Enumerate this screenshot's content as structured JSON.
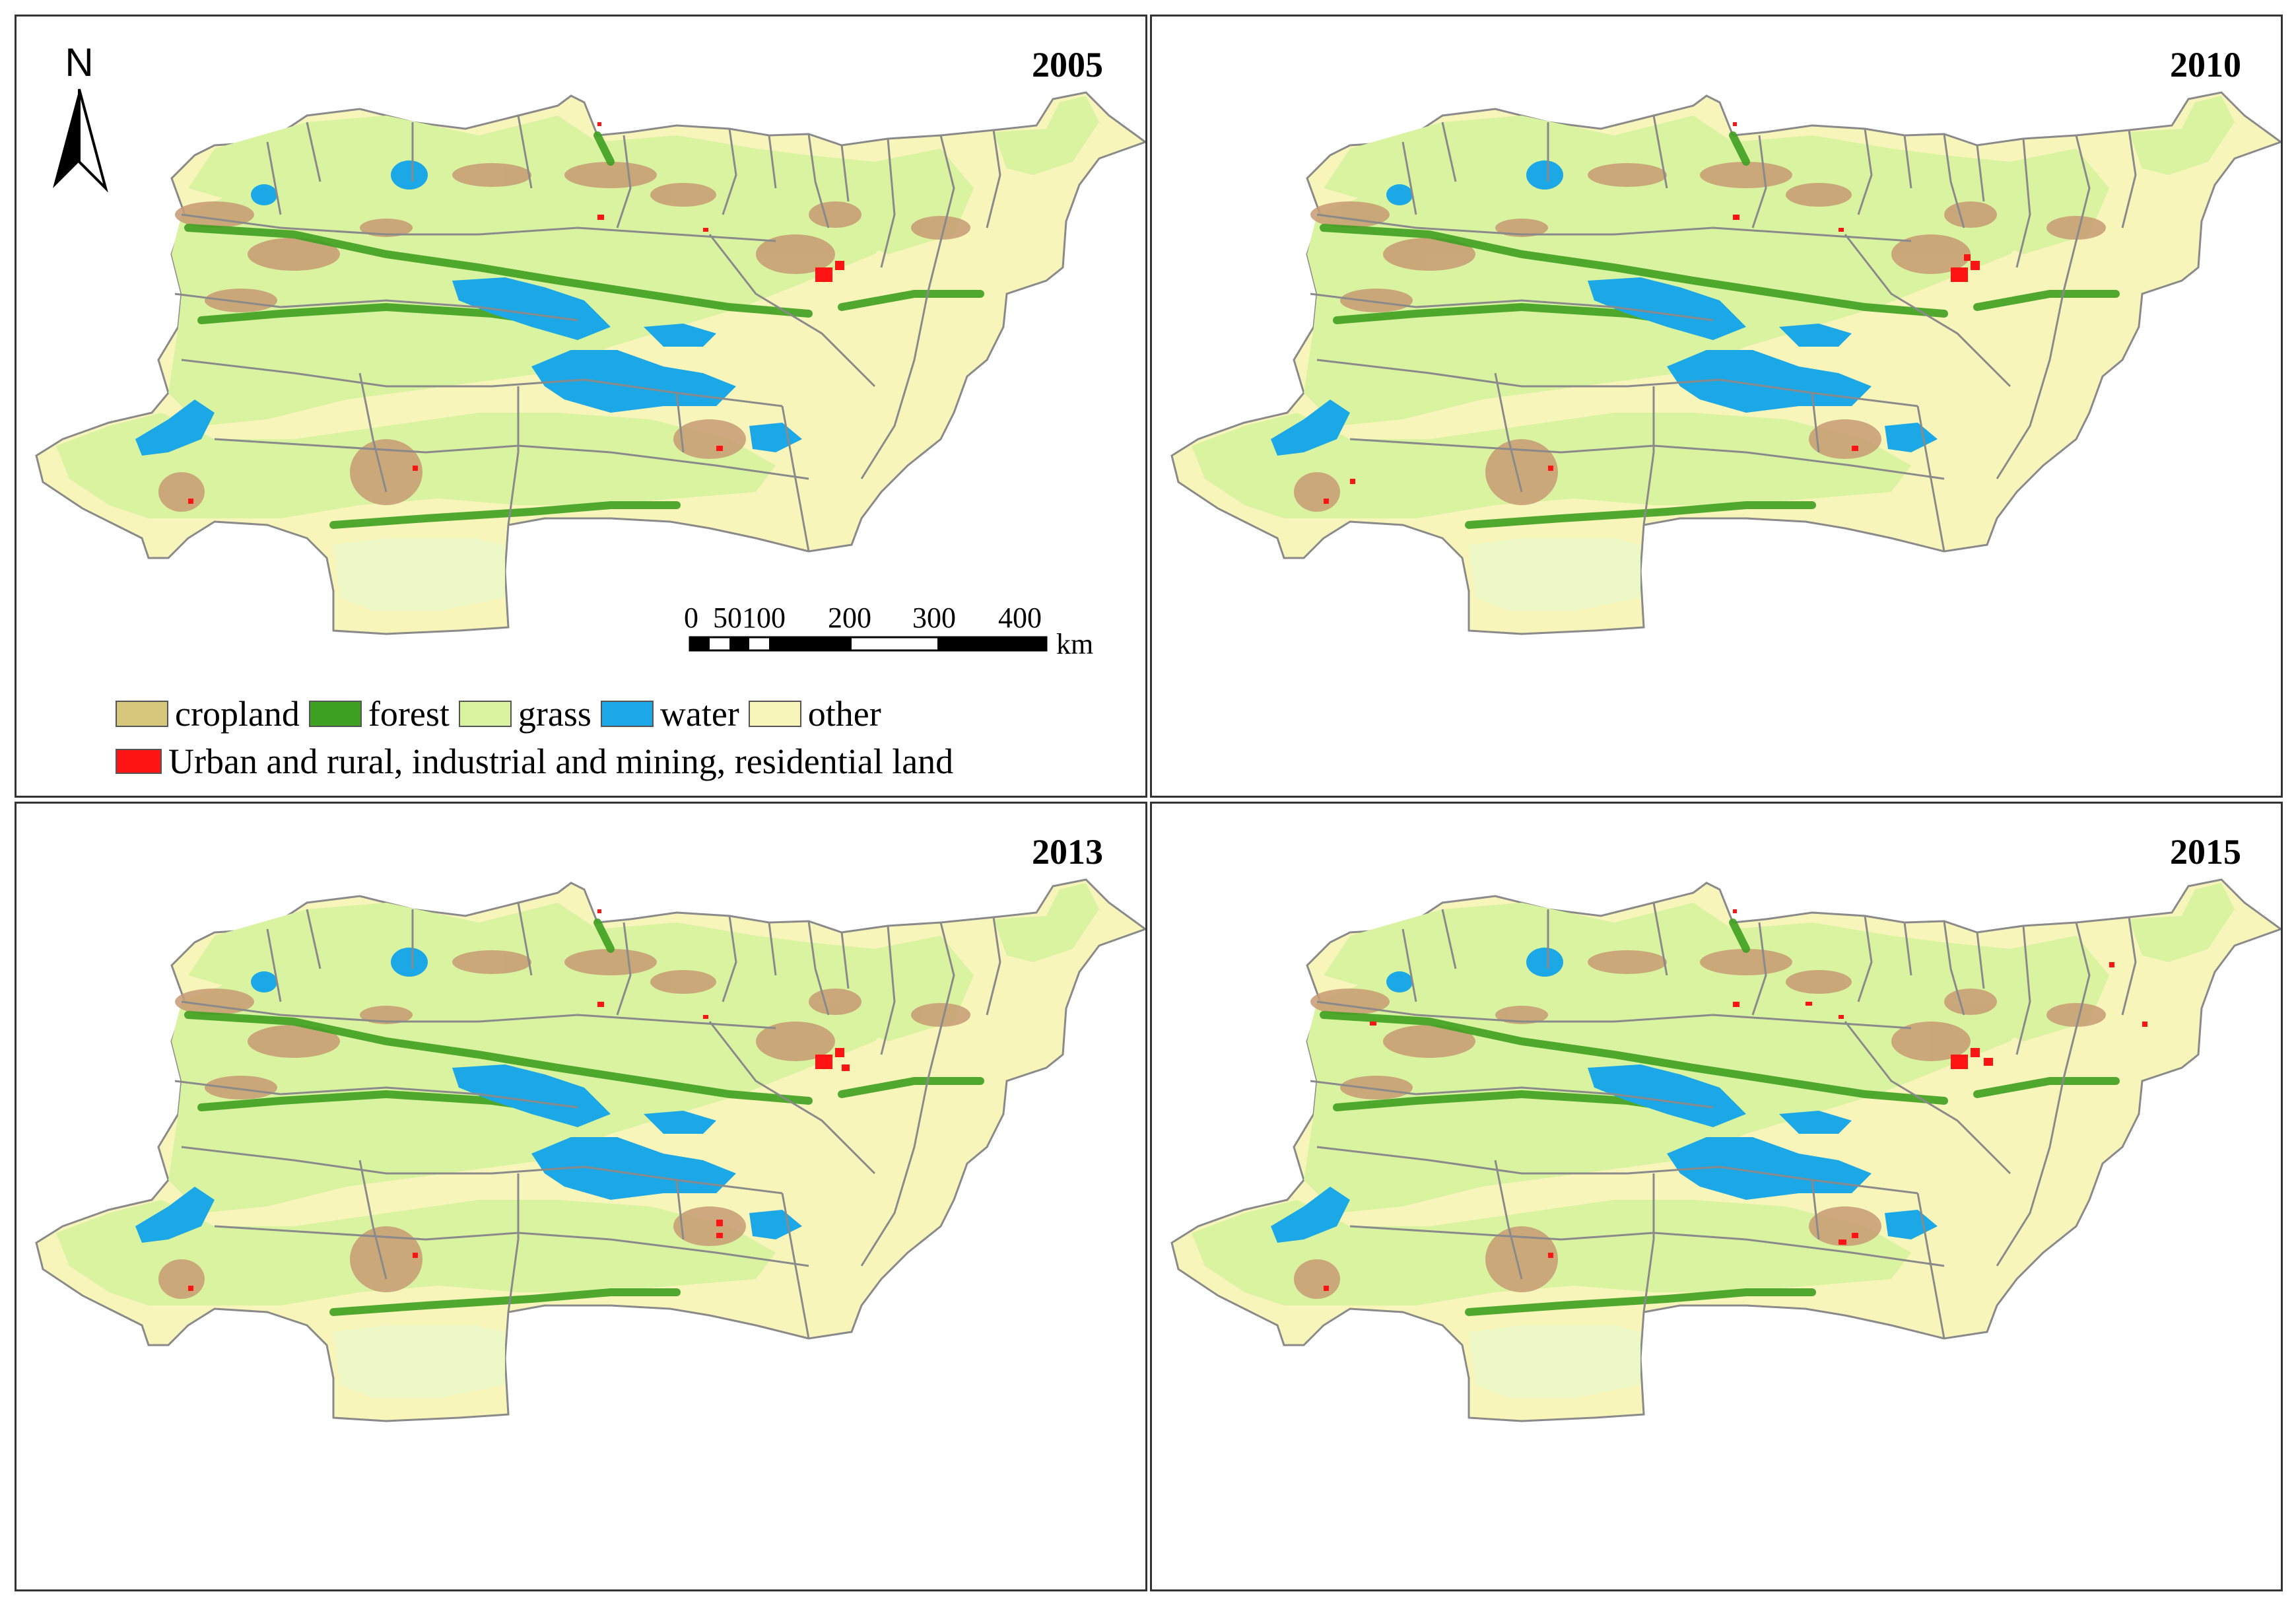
{
  "panels": [
    {
      "year": "2005"
    },
    {
      "year": "2010"
    },
    {
      "year": "2013"
    },
    {
      "year": "2015"
    }
  ],
  "north_arrow": {
    "label": "N"
  },
  "scale_bar": {
    "ticks": [
      "0",
      "50100",
      "200",
      "300",
      "400"
    ],
    "unit": "km"
  },
  "legend": {
    "items": [
      {
        "label": "cropland",
        "color": "#d6c77a"
      },
      {
        "label": "forest",
        "color": "#3ea020"
      },
      {
        "label": "grass",
        "color": "#d9f3a0"
      },
      {
        "label": "water",
        "color": "#1ca8e6"
      },
      {
        "label": "other",
        "color": "#f8f5bb"
      },
      {
        "label": "Urban and rural, industrial and mining, residential land",
        "color": "#ff1414"
      }
    ]
  },
  "colors": {
    "boundary": "#8a8a8a",
    "cropland": "#d6c77a",
    "cropland_dark": "#c79a73",
    "forest": "#3ea020",
    "grass": "#d9f3a0",
    "water": "#1ca8e6",
    "other": "#f8f5bb",
    "urban": "#ff1414"
  }
}
